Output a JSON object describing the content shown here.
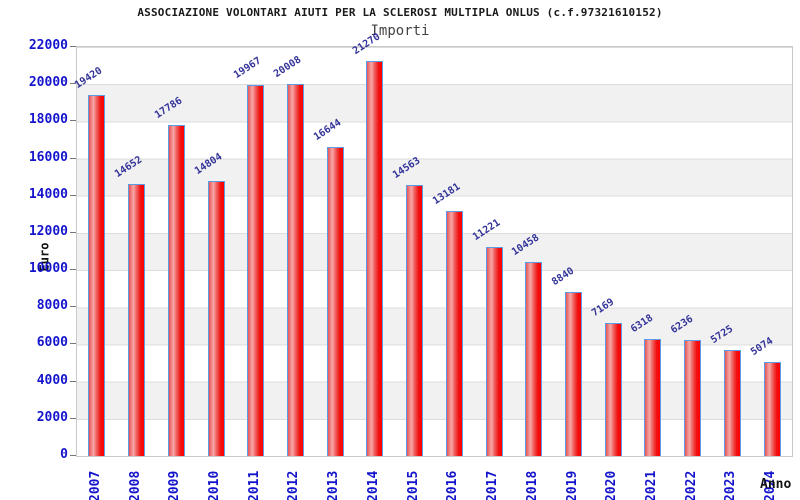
{
  "chart_data": {
    "type": "bar",
    "title": "ASSOCIAZIONE VOLONTARI AIUTI PER LA SCLEROSI MULTIPLA ONLUS (c.f.97321610152)",
    "subtitle": "Importi",
    "xlabel": "Anno",
    "ylabel": "Euro",
    "categories": [
      "2007",
      "2008",
      "2009",
      "2010",
      "2011",
      "2012",
      "2013",
      "2014",
      "2015",
      "2016",
      "2017",
      "2018",
      "2019",
      "2020",
      "2021",
      "2022",
      "2023",
      "2024"
    ],
    "values": [
      19420,
      14652,
      17786,
      14804,
      19967,
      20008,
      16644,
      21270,
      14563,
      13181,
      11221,
      10458,
      8840,
      7169,
      6318,
      6236,
      5725,
      5074
    ],
    "ylim": [
      0,
      22000
    ],
    "ytick_step": 2000,
    "grid": true,
    "legend": "none",
    "colors": {
      "bar_fill": "#ff0000",
      "bar_border": "#5c9ce6",
      "value_label": "#333399",
      "axis_tick_label": "#1414cc",
      "band_light": "#ffffff",
      "band_gray": "#f1f1f2",
      "gridline": "#dcdcdc",
      "frame": "#c9c9c9"
    }
  }
}
